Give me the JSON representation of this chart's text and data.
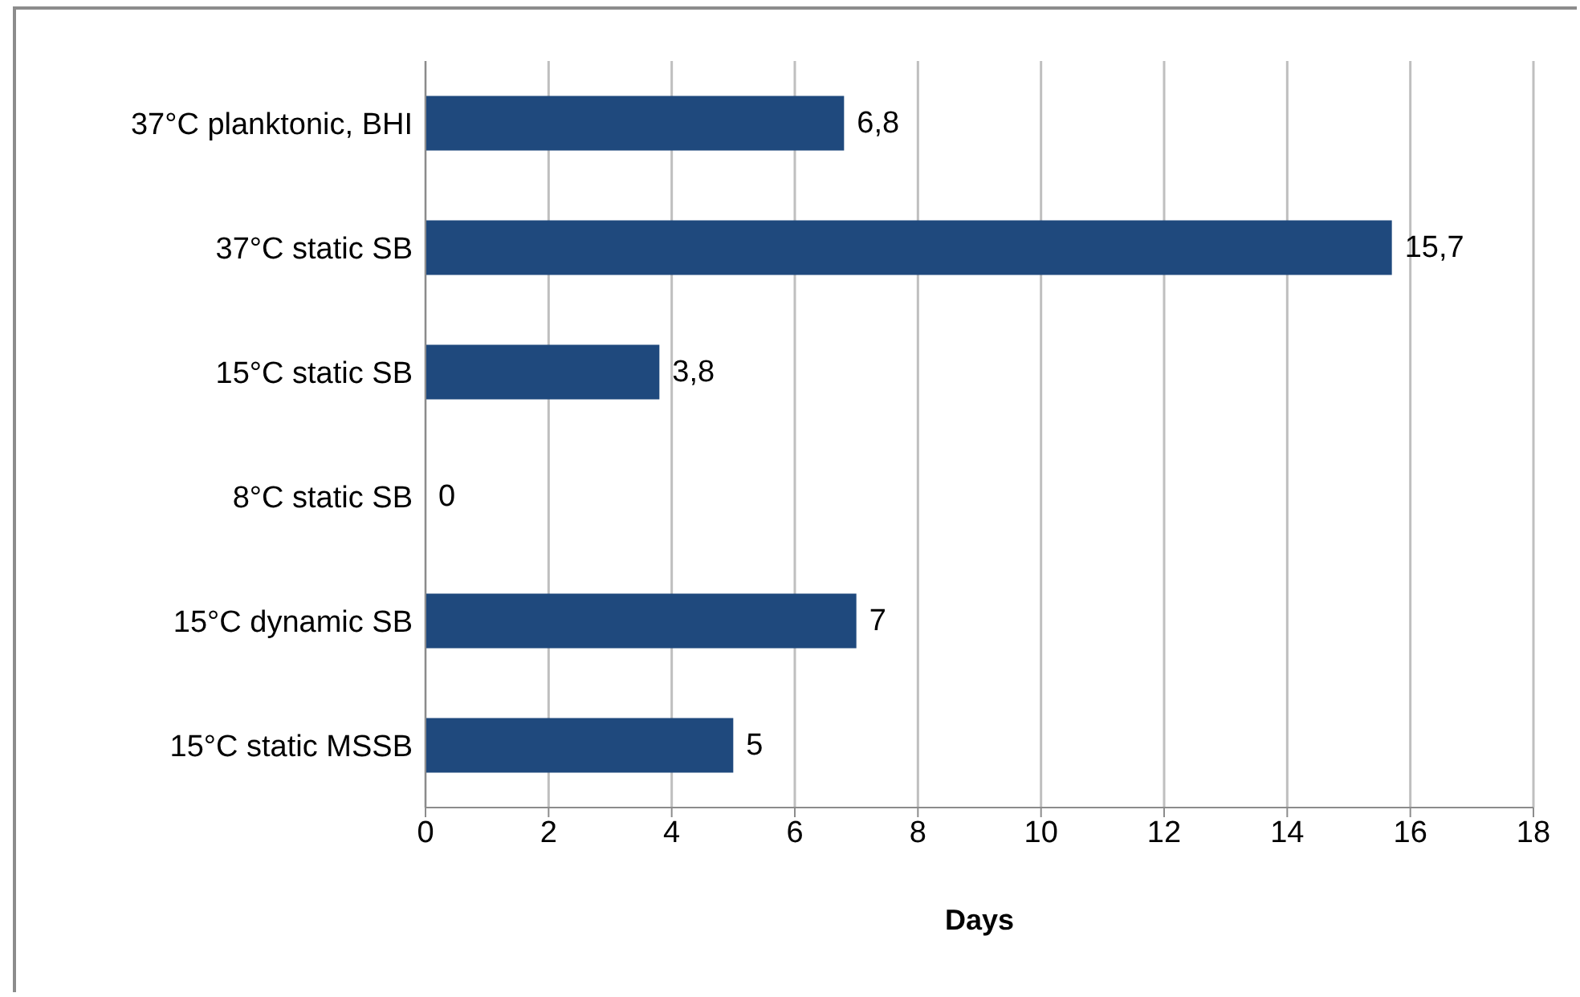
{
  "chart_data": {
    "type": "bar",
    "orientation": "horizontal",
    "xlabel": "Days",
    "categories": [
      "37°C planktonic, BHI",
      "37°C static SB",
      "15°C static SB",
      "8°C static SB",
      "15°C dynamic SB",
      "15°C static MSSB"
    ],
    "values": [
      6.8,
      15.7,
      3.8,
      0,
      7,
      5
    ],
    "value_labels": [
      "6,8",
      "15,7",
      "3,8",
      "0",
      "7",
      "5"
    ],
    "color": "#1f497d",
    "xlim": [
      0,
      18
    ],
    "xticks": [
      0,
      2,
      4,
      6,
      8,
      10,
      12,
      14,
      16,
      18
    ],
    "grid": "x",
    "legend": false
  }
}
